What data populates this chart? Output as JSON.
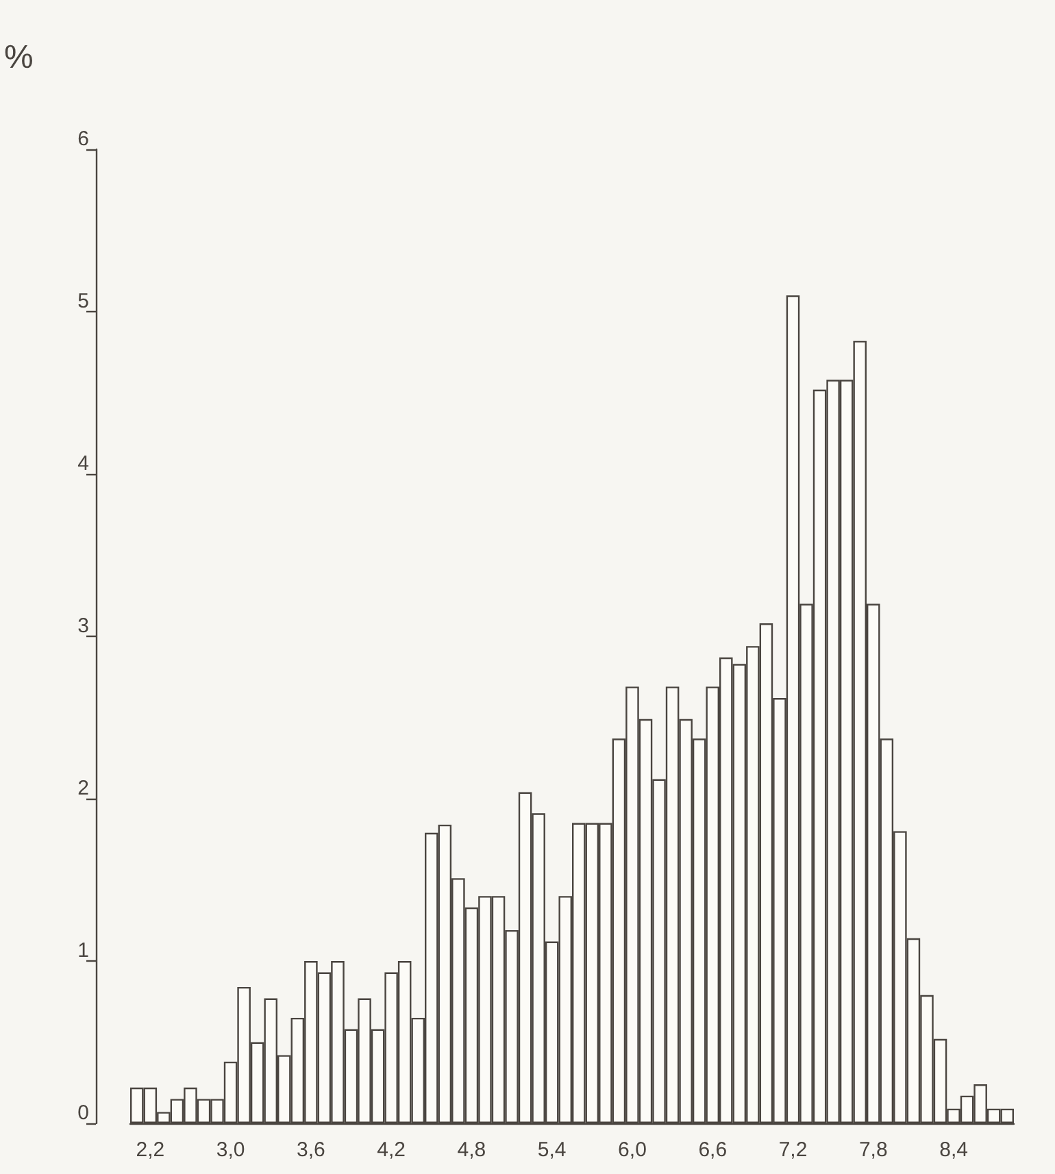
{
  "chart_data": {
    "type": "bar",
    "ylabel": "%",
    "categories": [
      null,
      "2,2",
      null,
      null,
      null,
      null,
      null,
      "3,0",
      null,
      null,
      null,
      null,
      null,
      "3,6",
      null,
      null,
      null,
      null,
      null,
      "4,2",
      null,
      null,
      null,
      null,
      null,
      "4,8",
      null,
      null,
      null,
      null,
      null,
      "5,4",
      null,
      null,
      null,
      null,
      null,
      "6,0",
      null,
      null,
      null,
      null,
      null,
      "6,6",
      null,
      null,
      null,
      null,
      null,
      "7,2",
      null,
      null,
      null,
      null,
      null,
      "7,8",
      null,
      null,
      null,
      null,
      null,
      "8,4",
      null,
      null,
      null,
      null
    ],
    "values": [
      0.22,
      0.22,
      0.07,
      0.15,
      0.22,
      0.15,
      0.15,
      0.38,
      0.84,
      0.5,
      0.77,
      0.42,
      0.65,
      1.0,
      0.93,
      1.0,
      0.58,
      0.77,
      0.58,
      0.93,
      1.0,
      0.65,
      1.79,
      1.84,
      1.51,
      1.33,
      1.4,
      1.4,
      1.19,
      2.04,
      1.91,
      1.12,
      1.4,
      1.85,
      1.85,
      1.85,
      2.37,
      2.69,
      2.49,
      2.12,
      2.69,
      2.49,
      2.37,
      2.69,
      2.87,
      2.83,
      2.94,
      3.08,
      2.62,
      5.1,
      3.2,
      4.52,
      4.58,
      4.58,
      4.82,
      3.2,
      2.37,
      1.8,
      1.14,
      0.79,
      0.52,
      0.09,
      0.17,
      0.24,
      0.09,
      0.09
    ],
    "color": "#fcfbf7",
    "ylim": [
      0,
      6
    ],
    "yticks": [
      0,
      1,
      2,
      3,
      4,
      5,
      6
    ],
    "grid": false
  }
}
